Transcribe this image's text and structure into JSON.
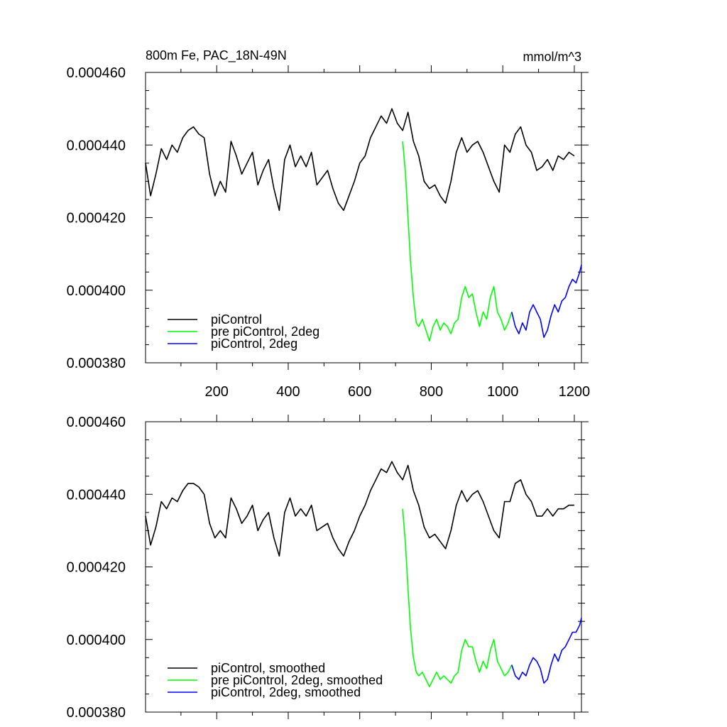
{
  "chart_data": [
    {
      "type": "line",
      "title_left": "800m Fe, PAC_18N-49N",
      "title_right": "mmol/m^3",
      "xlim": [
        1,
        1220
      ],
      "ylim": [
        0.00038,
        0.00046
      ],
      "x_ticks": [
        200,
        400,
        600,
        800,
        1000,
        1200
      ],
      "x_tick_labels": [
        "200",
        "400",
        "600",
        "800",
        "1000",
        "1200"
      ],
      "y_ticks": [
        0.00038,
        0.0004,
        0.00042,
        0.00044,
        0.00046
      ],
      "y_tick_labels": [
        "0.000380",
        "0.000400",
        "0.000420",
        "0.000440",
        "0.000460"
      ],
      "legend_position": "bottom-left",
      "series": [
        {
          "name": "piControl",
          "color": "#000000",
          "x": [
            1,
            15,
            30,
            45,
            60,
            75,
            90,
            105,
            120,
            135,
            150,
            165,
            180,
            195,
            210,
            225,
            240,
            255,
            270,
            285,
            300,
            315,
            330,
            345,
            360,
            375,
            390,
            405,
            420,
            435,
            450,
            465,
            480,
            495,
            510,
            525,
            540,
            555,
            570,
            585,
            600,
            615,
            630,
            645,
            660,
            675,
            690,
            705,
            720,
            735,
            750,
            765,
            780,
            795,
            810,
            825,
            840,
            855,
            870,
            885,
            900,
            915,
            930,
            945,
            960,
            975,
            990,
            1005,
            1020,
            1035,
            1050,
            1065,
            1080,
            1095,
            1110,
            1125,
            1140,
            1155,
            1170,
            1185,
            1200
          ],
          "y": [
            0.000435,
            0.000426,
            0.000432,
            0.000439,
            0.000436,
            0.00044,
            0.000438,
            0.000442,
            0.000444,
            0.000445,
            0.000443,
            0.000442,
            0.000432,
            0.000426,
            0.00043,
            0.000427,
            0.000441,
            0.000437,
            0.000432,
            0.000435,
            0.000438,
            0.000429,
            0.000433,
            0.000436,
            0.000428,
            0.000422,
            0.000436,
            0.00044,
            0.000434,
            0.000437,
            0.000434,
            0.000438,
            0.000429,
            0.000431,
            0.000433,
            0.000428,
            0.000424,
            0.000422,
            0.000426,
            0.00043,
            0.000435,
            0.000437,
            0.000442,
            0.000445,
            0.000448,
            0.000446,
            0.00045,
            0.000446,
            0.000444,
            0.000449,
            0.000441,
            0.000437,
            0.00043,
            0.000428,
            0.000429,
            0.000426,
            0.000424,
            0.00043,
            0.000438,
            0.000442,
            0.000438,
            0.00044,
            0.000441,
            0.000438,
            0.000434,
            0.00043,
            0.000427,
            0.00044,
            0.000438,
            0.000443,
            0.000445,
            0.00044,
            0.000438,
            0.000433,
            0.000434,
            0.000436,
            0.000433,
            0.000437,
            0.000436,
            0.000438,
            0.000437
          ]
        },
        {
          "name": "pre piControl, 2deg",
          "color": "#00ff00",
          "x": [
            720,
            728,
            735,
            742,
            750,
            758,
            765,
            775,
            785,
            795,
            805,
            815,
            825,
            835,
            845,
            855,
            865,
            875,
            885,
            895,
            905,
            915,
            925,
            935,
            945,
            955,
            965,
            975,
            985,
            995,
            1005,
            1015,
            1025
          ],
          "y": [
            0.000441,
            0.000432,
            0.00042,
            0.000408,
            0.000398,
            0.000391,
            0.00039,
            0.000392,
            0.000389,
            0.000386,
            0.00039,
            0.000392,
            0.000389,
            0.000391,
            0.00039,
            0.000388,
            0.000391,
            0.000392,
            0.000398,
            0.000401,
            0.000398,
            0.000399,
            0.000394,
            0.00039,
            0.000394,
            0.000392,
            0.000398,
            0.000401,
            0.000394,
            0.000392,
            0.000389,
            0.000391,
            0.000394
          ]
        },
        {
          "name": "piControl, 2deg",
          "color": "#0000ff",
          "x": [
            1025,
            1035,
            1045,
            1055,
            1065,
            1075,
            1085,
            1095,
            1105,
            1115,
            1125,
            1135,
            1145,
            1155,
            1165,
            1175,
            1185,
            1195,
            1205,
            1215,
            1220
          ],
          "y": [
            0.000394,
            0.00039,
            0.000388,
            0.000391,
            0.000389,
            0.000394,
            0.000396,
            0.000394,
            0.000392,
            0.000387,
            0.000389,
            0.000393,
            0.000396,
            0.000394,
            0.000397,
            0.000398,
            0.000401,
            0.000403,
            0.000402,
            0.000405,
            0.000407
          ]
        }
      ]
    },
    {
      "type": "line",
      "xlim": [
        1,
        1220
      ],
      "ylim": [
        0.00038,
        0.00046
      ],
      "x_ticks": [
        200,
        400,
        600,
        800,
        1000,
        1200
      ],
      "y_ticks": [
        0.00038,
        0.0004,
        0.00042,
        0.00044,
        0.00046
      ],
      "y_tick_labels": [
        "0.000380",
        "0.000400",
        "0.000420",
        "0.000440",
        "0.000460"
      ],
      "legend_position": "bottom-left",
      "series": [
        {
          "name": "piControl, smoothed",
          "color": "#000000",
          "x": [
            1,
            15,
            30,
            45,
            60,
            75,
            90,
            105,
            120,
            135,
            150,
            165,
            180,
            195,
            210,
            225,
            240,
            255,
            270,
            285,
            300,
            315,
            330,
            345,
            360,
            375,
            390,
            405,
            420,
            435,
            450,
            465,
            480,
            495,
            510,
            525,
            540,
            555,
            570,
            585,
            600,
            615,
            630,
            645,
            660,
            675,
            690,
            705,
            720,
            735,
            750,
            765,
            780,
            795,
            810,
            825,
            840,
            855,
            870,
            885,
            900,
            915,
            930,
            945,
            960,
            975,
            990,
            1005,
            1020,
            1035,
            1050,
            1065,
            1080,
            1095,
            1110,
            1125,
            1140,
            1155,
            1170,
            1185,
            1200
          ],
          "y": [
            0.000434,
            0.000426,
            0.000431,
            0.000438,
            0.000436,
            0.000439,
            0.000438,
            0.000441,
            0.000443,
            0.000443,
            0.000442,
            0.00044,
            0.000432,
            0.000428,
            0.00043,
            0.000428,
            0.000439,
            0.000436,
            0.000432,
            0.000434,
            0.000437,
            0.00043,
            0.000433,
            0.000435,
            0.000428,
            0.000423,
            0.000435,
            0.000439,
            0.000434,
            0.000436,
            0.000434,
            0.000437,
            0.00043,
            0.000431,
            0.000432,
            0.000428,
            0.000425,
            0.000423,
            0.000427,
            0.00043,
            0.000434,
            0.000437,
            0.000441,
            0.000444,
            0.000447,
            0.000446,
            0.000449,
            0.000446,
            0.000444,
            0.000448,
            0.000441,
            0.000437,
            0.000431,
            0.000428,
            0.000429,
            0.000427,
            0.000425,
            0.00043,
            0.000437,
            0.000441,
            0.000438,
            0.00044,
            0.000441,
            0.000438,
            0.000434,
            0.00043,
            0.000428,
            0.000438,
            0.000438,
            0.000443,
            0.000444,
            0.00044,
            0.000438,
            0.000434,
            0.000434,
            0.000436,
            0.000434,
            0.000436,
            0.000436,
            0.000437,
            0.000437
          ]
        },
        {
          "name": "pre piControl, 2deg, smoothed",
          "color": "#00ff00",
          "x": [
            720,
            728,
            735,
            742,
            750,
            758,
            765,
            775,
            785,
            795,
            805,
            815,
            825,
            835,
            845,
            855,
            865,
            875,
            885,
            895,
            905,
            915,
            925,
            935,
            945,
            955,
            965,
            975,
            985,
            995,
            1005,
            1015,
            1025
          ],
          "y": [
            0.000436,
            0.000426,
            0.000414,
            0.000403,
            0.000395,
            0.000391,
            0.00039,
            0.000391,
            0.000389,
            0.000387,
            0.000389,
            0.000391,
            0.000389,
            0.00039,
            0.000389,
            0.000388,
            0.00039,
            0.000391,
            0.000397,
            0.0004,
            0.000398,
            0.000398,
            0.000394,
            0.000391,
            0.000394,
            0.000392,
            0.000397,
            0.0004,
            0.000394,
            0.000392,
            0.00039,
            0.000391,
            0.000393
          ]
        },
        {
          "name": "piControl, 2deg, smoothed",
          "color": "#0000ff",
          "x": [
            1025,
            1035,
            1045,
            1055,
            1065,
            1075,
            1085,
            1095,
            1105,
            1115,
            1125,
            1135,
            1145,
            1155,
            1165,
            1175,
            1185,
            1195,
            1205,
            1215,
            1220
          ],
          "y": [
            0.000393,
            0.00039,
            0.000389,
            0.000391,
            0.00039,
            0.000393,
            0.000395,
            0.000394,
            0.000392,
            0.000388,
            0.000389,
            0.000393,
            0.000396,
            0.000394,
            0.000397,
            0.000398,
            0.0004,
            0.000402,
            0.000402,
            0.000404,
            0.000406
          ]
        }
      ]
    }
  ]
}
